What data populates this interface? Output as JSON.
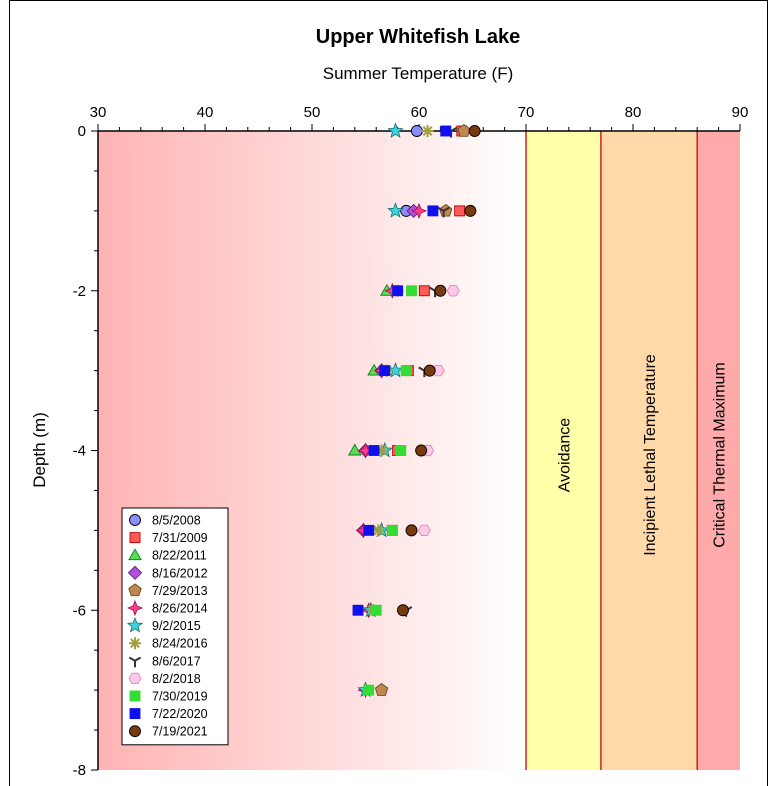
{
  "chart_data": {
    "type": "scatter",
    "title": "Upper Whitefish Lake",
    "xlabel": "Summer Temperature (F)",
    "ylabel": "Depth (m)",
    "xlim": [
      30,
      90
    ],
    "ylim": [
      -8,
      0
    ],
    "x_ticks": [
      "30",
      "40",
      "50",
      "60",
      "70",
      "80",
      "90"
    ],
    "y_ticks": [
      "0",
      "-2",
      "-4",
      "-6",
      "-8"
    ],
    "x_axis_position": "top",
    "grid": false,
    "legend_position": "bottom-left",
    "zones": [
      {
        "label": "",
        "x0": 30,
        "x1": 70,
        "color": "#ffb3b3",
        "gradient_to": "#ffffff"
      },
      {
        "label": "Avoidance",
        "x0": 70,
        "x1": 77,
        "color": "#ffffaa"
      },
      {
        "label": "Incipient Lethal Temperature",
        "x0": 77,
        "x1": 86,
        "color": "#ffd9a8"
      },
      {
        "label": "Critical Thermal Maximum",
        "x0": 86,
        "x1": 90,
        "color": "#ffaaaa"
      }
    ],
    "zone_boundaries": [
      70,
      77,
      86
    ],
    "zone_boundary_color": "#cc2222",
    "series": [
      {
        "name": "8/5/2008",
        "marker": "circle",
        "color": "#8c8cff",
        "points": [
          [
            59.8,
            0
          ],
          [
            58.8,
            -1
          ]
        ]
      },
      {
        "name": "7/31/2009",
        "marker": "square",
        "color": "#ff5a5a",
        "points": [
          [
            64.0,
            0
          ],
          [
            63.8,
            -1
          ],
          [
            60.5,
            -2
          ],
          [
            59.0,
            -3
          ],
          [
            58.0,
            -4
          ],
          [
            57.5,
            -5
          ]
        ]
      },
      {
        "name": "8/22/2011",
        "marker": "triangle",
        "color": "#55dd55",
        "points": [
          [
            57.0,
            -2
          ],
          [
            55.8,
            -3
          ],
          [
            54.0,
            -4
          ]
        ]
      },
      {
        "name": "8/16/2012",
        "marker": "diamond",
        "color": "#b050e0",
        "points": [
          [
            59.5,
            -1
          ],
          [
            56.5,
            -3
          ],
          [
            55.0,
            -4
          ],
          [
            54.8,
            -5
          ]
        ]
      },
      {
        "name": "7/29/2013",
        "marker": "pentagon",
        "color": "#c08850",
        "points": [
          [
            64.2,
            0
          ],
          [
            62.5,
            -1
          ],
          [
            56.5,
            -7
          ]
        ]
      },
      {
        "name": "8/26/2014",
        "marker": "star4",
        "color": "#ff3c8c",
        "points": [
          [
            60.0,
            -1
          ],
          [
            57.5,
            -2
          ],
          [
            56.5,
            -3
          ],
          [
            55.0,
            -4
          ],
          [
            54.8,
            -5
          ],
          [
            55.3,
            -6
          ],
          [
            55.0,
            -7
          ]
        ]
      },
      {
        "name": "9/2/2015",
        "marker": "star5",
        "color": "#3cd4dc",
        "points": [
          [
            57.8,
            0
          ],
          [
            57.8,
            -1
          ],
          [
            57.8,
            -3
          ],
          [
            56.8,
            -4
          ],
          [
            56.5,
            -5
          ],
          [
            55.5,
            -6
          ],
          [
            55.0,
            -7
          ]
        ]
      },
      {
        "name": "8/24/2016",
        "marker": "asterisk",
        "color": "#a0a040",
        "points": [
          [
            60.8,
            0
          ],
          [
            58.0,
            -2
          ],
          [
            57.0,
            -3
          ],
          [
            56.5,
            -4
          ],
          [
            56.2,
            -5
          ],
          [
            55.7,
            -6
          ]
        ]
      },
      {
        "name": "8/6/2017",
        "marker": "ystar",
        "color": "#333333",
        "points": [
          [
            63.0,
            0
          ],
          [
            62.3,
            -1
          ],
          [
            61.5,
            -2
          ],
          [
            60.5,
            -3
          ],
          [
            58.8,
            -6
          ]
        ]
      },
      {
        "name": "8/2/2018",
        "marker": "hexagon",
        "color": "#ffc8e8",
        "points": [
          [
            63.2,
            -2
          ],
          [
            61.8,
            -3
          ],
          [
            60.8,
            -4
          ],
          [
            60.5,
            -5
          ]
        ]
      },
      {
        "name": "7/30/2019",
        "marker": "square",
        "color": "#33dd33",
        "points": [
          [
            59.3,
            -2
          ],
          [
            58.8,
            -3
          ],
          [
            58.3,
            -4
          ],
          [
            57.5,
            -5
          ],
          [
            56.0,
            -6
          ],
          [
            55.3,
            -7
          ]
        ]
      },
      {
        "name": "7/22/2020",
        "marker": "square",
        "color": "#1010ee",
        "points": [
          [
            62.5,
            0
          ],
          [
            61.3,
            -1
          ],
          [
            58.0,
            -2
          ],
          [
            56.8,
            -3
          ],
          [
            55.8,
            -4
          ],
          [
            55.3,
            -5
          ],
          [
            54.3,
            -6
          ]
        ]
      },
      {
        "name": "7/19/2021",
        "marker": "circle",
        "color": "#7a3a10",
        "points": [
          [
            65.2,
            0
          ],
          [
            64.8,
            -1
          ],
          [
            62.0,
            -2
          ],
          [
            61.0,
            -3
          ],
          [
            60.2,
            -4
          ],
          [
            59.3,
            -5
          ],
          [
            58.5,
            -6
          ]
        ]
      }
    ]
  }
}
